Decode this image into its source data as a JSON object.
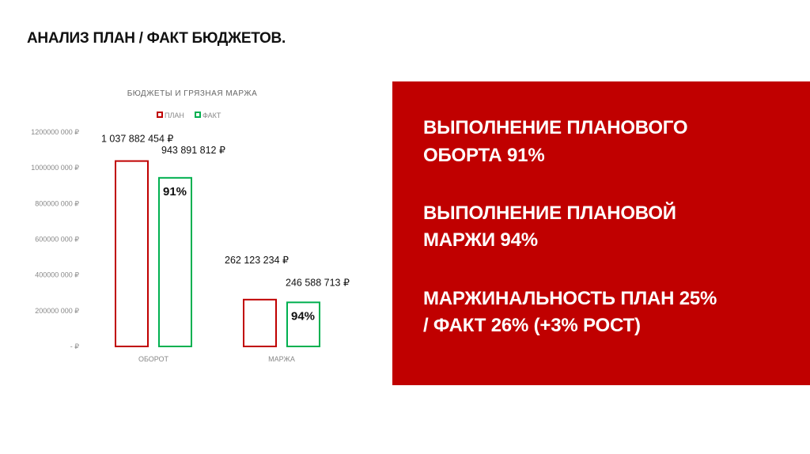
{
  "slide": {
    "title": "АНАЛИЗ ПЛАН / ФАКТ  БЮДЖЕТОВ."
  },
  "panel": {
    "background": "#C00000",
    "lines": [
      "ВЫПОЛНЕНИЕ ПЛАНОВОГО",
      "ОБОРТА 91%",
      "ВЫПОЛНЕНИЕ ПЛАНОВОЙ",
      "МАРЖИ 94%",
      "МАРЖИНАЛЬНОСТЬ ПЛАН 25%",
      "/ ФАКТ 26% (+3% РОСТ)"
    ]
  },
  "chart_data": {
    "type": "bar",
    "title": "БЮДЖЕТЫ И ГРЯЗНАЯ МАРЖА",
    "categories": [
      "ОБОРОТ",
      "МАРЖА"
    ],
    "series": [
      {
        "name": "ПЛАН",
        "color": "#C00000",
        "values": [
          1037882454,
          262123234
        ],
        "labels": [
          "1 037 882 454 ₽",
          "262 123 234 ₽"
        ]
      },
      {
        "name": "ФАКТ",
        "color": "#00B050",
        "values": [
          943891812,
          246588713
        ],
        "labels": [
          "943 891 812 ₽",
          "246 588 713 ₽"
        ],
        "percent_labels": [
          "91%",
          "94%"
        ]
      }
    ],
    "bar_style": "outline",
    "ylim": [
      0,
      1200000000
    ],
    "yticks": [
      0,
      200000000,
      400000000,
      600000000,
      800000000,
      1000000000,
      1200000000
    ],
    "ytick_labels": [
      "-  ₽",
      "200000 000 ₽",
      "400000 000 ₽",
      "600000 000 ₽",
      "800000 000 ₽",
      "1000000 000 ₽",
      "1200000 000 ₽"
    ],
    "legend": "top",
    "grid": false
  }
}
